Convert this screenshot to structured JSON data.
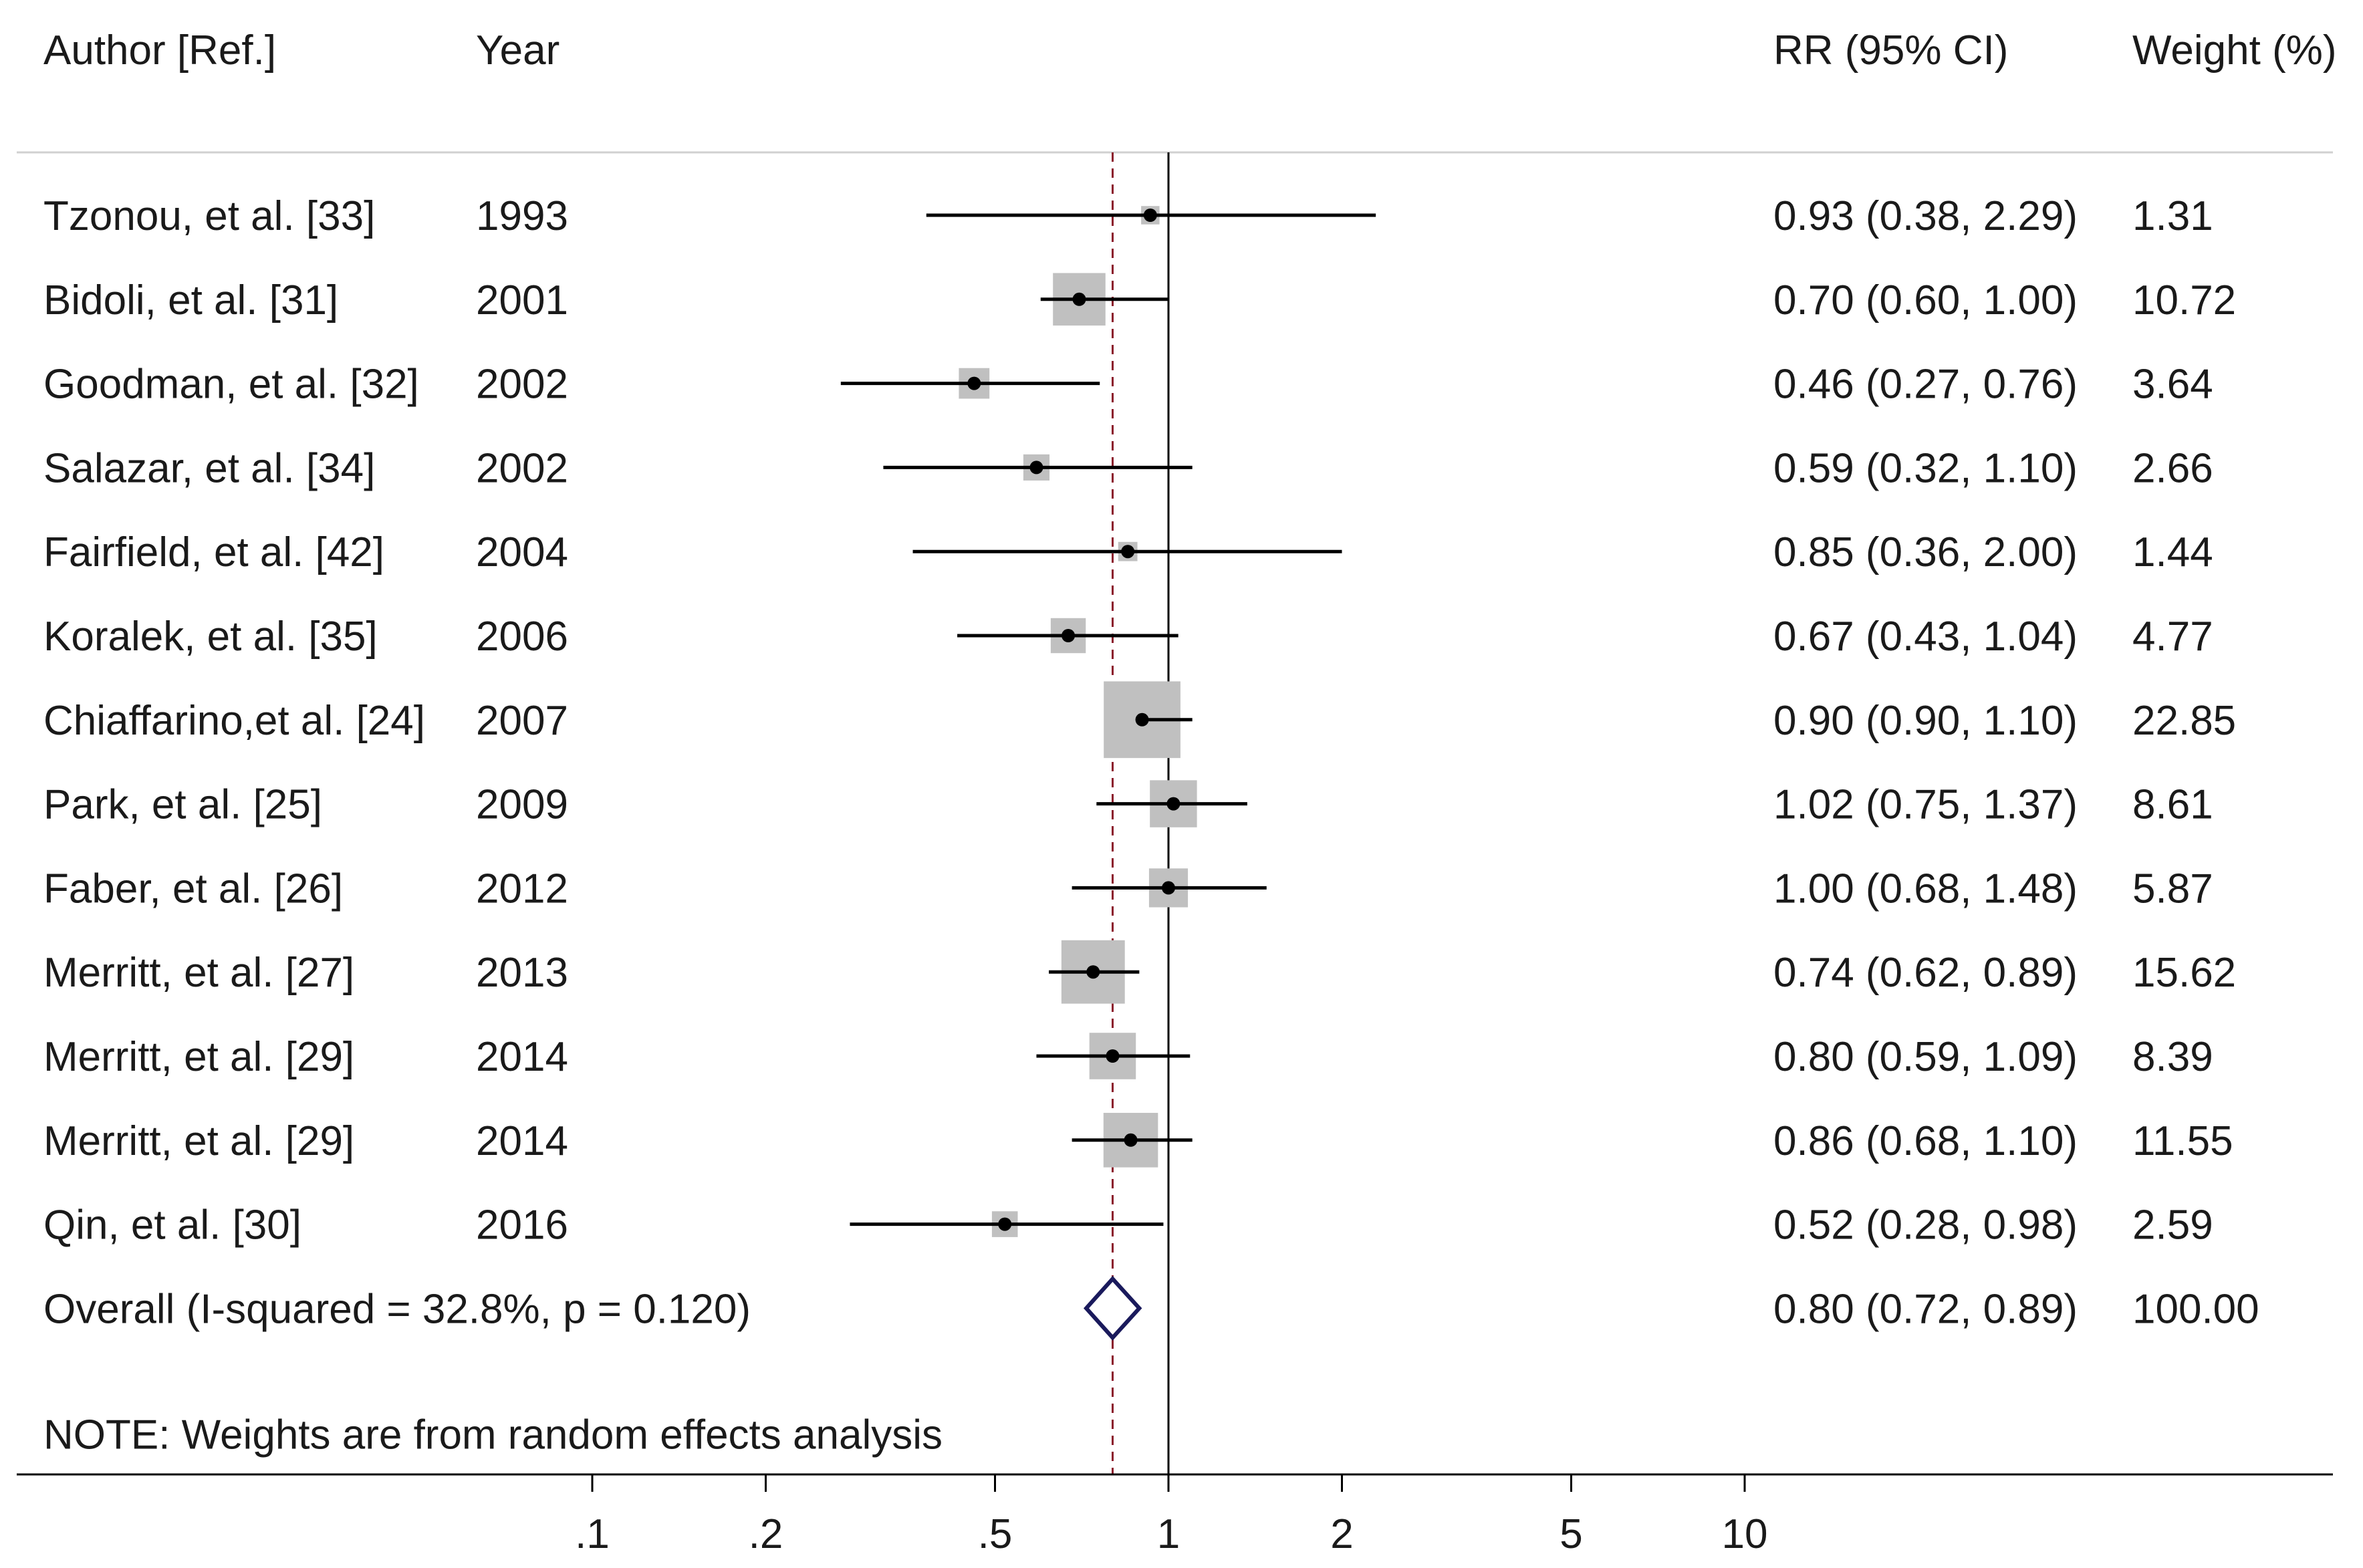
{
  "chart_data": {
    "type": "forest",
    "headers": {
      "author": "Author [Ref.]",
      "year": "Year",
      "rr": "RR (95% CI)",
      "weight": "Weight (%)"
    },
    "studies": [
      {
        "author": "Tzonou, et al. [33]",
        "year": "1993",
        "rr": 0.93,
        "lo": 0.38,
        "hi": 2.29,
        "weight": 1.31,
        "rr_text": "0.93 (0.38, 2.29)",
        "weight_text": "1.31"
      },
      {
        "author": "Bidoli, et al. [31]",
        "year": "2001",
        "rr": 0.7,
        "lo": 0.6,
        "hi": 1.0,
        "weight": 10.72,
        "rr_text": "0.70 (0.60, 1.00)",
        "weight_text": "10.72"
      },
      {
        "author": "Goodman, et al. [32]",
        "year": "2002",
        "rr": 0.46,
        "lo": 0.27,
        "hi": 0.76,
        "weight": 3.64,
        "rr_text": "0.46 (0.27, 0.76)",
        "weight_text": "3.64"
      },
      {
        "author": "Salazar, et al. [34]",
        "year": "2002",
        "rr": 0.59,
        "lo": 0.32,
        "hi": 1.1,
        "weight": 2.66,
        "rr_text": "0.59 (0.32, 1.10)",
        "weight_text": "2.66"
      },
      {
        "author": "Fairfield, et al. [42]",
        "year": "2004",
        "rr": 0.85,
        "lo": 0.36,
        "hi": 2.0,
        "weight": 1.44,
        "rr_text": "0.85 (0.36, 2.00)",
        "weight_text": "1.44"
      },
      {
        "author": "Koralek, et al. [35]",
        "year": "2006",
        "rr": 0.67,
        "lo": 0.43,
        "hi": 1.04,
        "weight": 4.77,
        "rr_text": "0.67 (0.43, 1.04)",
        "weight_text": "4.77"
      },
      {
        "author": "Chiaffarino,et al. [24]",
        "year": "2007",
        "rr": 0.9,
        "lo": 0.9,
        "hi": 1.1,
        "weight": 22.85,
        "rr_text": "0.90 (0.90, 1.10)",
        "weight_text": "22.85"
      },
      {
        "author": "Park, et al. [25]",
        "year": "2009",
        "rr": 1.02,
        "lo": 0.75,
        "hi": 1.37,
        "weight": 8.61,
        "rr_text": "1.02 (0.75, 1.37)",
        "weight_text": "8.61"
      },
      {
        "author": "Faber, et al. [26]",
        "year": "2012",
        "rr": 1.0,
        "lo": 0.68,
        "hi": 1.48,
        "weight": 5.87,
        "rr_text": "1.00 (0.68, 1.48)",
        "weight_text": "5.87"
      },
      {
        "author": "Merritt, et al. [27]",
        "year": "2013",
        "rr": 0.74,
        "lo": 0.62,
        "hi": 0.89,
        "weight": 15.62,
        "rr_text": "0.74 (0.62, 0.89)",
        "weight_text": "15.62"
      },
      {
        "author": "Merritt, et al. [29]",
        "year": "2014",
        "rr": 0.8,
        "lo": 0.59,
        "hi": 1.09,
        "weight": 8.39,
        "rr_text": "0.80 (0.59, 1.09)",
        "weight_text": "8.39"
      },
      {
        "author": "Merritt, et al. [29]",
        "year": "2014",
        "rr": 0.86,
        "lo": 0.68,
        "hi": 1.1,
        "weight": 11.55,
        "rr_text": "0.86 (0.68, 1.10)",
        "weight_text": "11.55"
      },
      {
        "author": "Qin, et al. [30]",
        "year": "2016",
        "rr": 0.52,
        "lo": 0.28,
        "hi": 0.98,
        "weight": 2.59,
        "rr_text": "0.52 (0.28, 0.98)",
        "weight_text": "2.59"
      }
    ],
    "overall": {
      "label": "Overall  (I-squared = 32.8%, p = 0.120)",
      "rr": 0.8,
      "lo": 0.72,
      "hi": 0.89,
      "rr_text": "0.80 (0.72, 0.89)",
      "weight_text": "100.00"
    },
    "note": "NOTE: Weights are from random effects analysis",
    "x_axis": {
      "scale": "log",
      "ticks": [
        0.1,
        0.2,
        0.5,
        1,
        2,
        5,
        10
      ],
      "tick_labels": [
        ".1",
        ".2",
        ".5",
        "1",
        "2",
        "5",
        "10"
      ],
      "reference": 1
    },
    "colors": {
      "box": "#c0c0c0",
      "line": "#000000",
      "diamond": "#1a1a5c",
      "overall_line": "#8b1a2b",
      "rule": "#d0d0d0"
    }
  }
}
